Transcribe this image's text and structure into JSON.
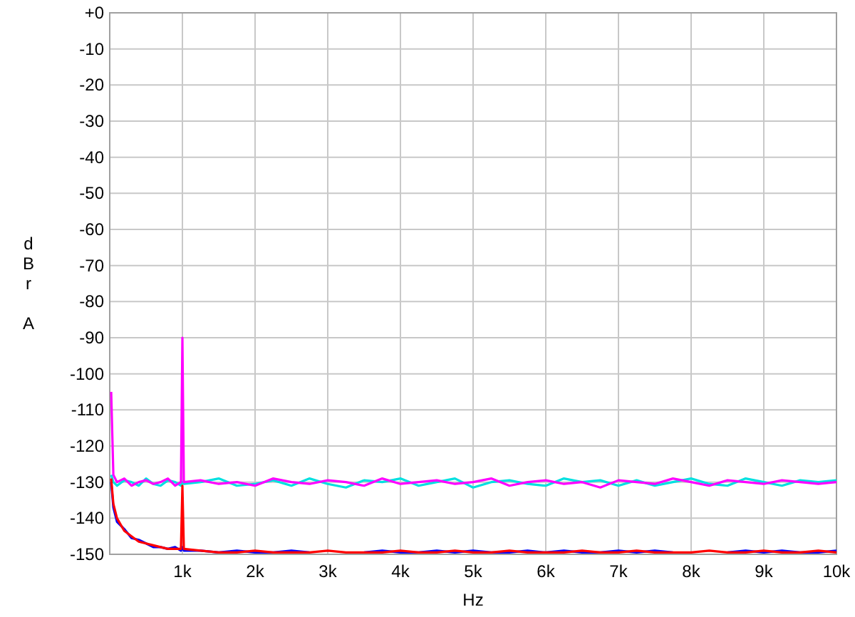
{
  "chart_data": {
    "type": "line",
    "xlabel": "Hz",
    "ylabel": "dBr A",
    "grid": true,
    "marker": "none",
    "line_style": "solid",
    "xlim": [
      0,
      10000
    ],
    "xticks": [
      {
        "value": 1000,
        "label": "1k"
      },
      {
        "value": 2000,
        "label": "2k"
      },
      {
        "value": 3000,
        "label": "3k"
      },
      {
        "value": 4000,
        "label": "4k"
      },
      {
        "value": 5000,
        "label": "5k"
      },
      {
        "value": 6000,
        "label": "6k"
      },
      {
        "value": 7000,
        "label": "7k"
      },
      {
        "value": 8000,
        "label": "8k"
      },
      {
        "value": 9000,
        "label": "9k"
      },
      {
        "value": 10000,
        "label": "10k"
      }
    ],
    "ylim": [
      -150,
      0
    ],
    "yticks": [
      {
        "value": 0,
        "label": "+0"
      },
      -10,
      -20,
      -30,
      -40,
      -50,
      -60,
      -70,
      -80,
      -90,
      -100,
      -110,
      -120,
      -130,
      -140,
      -150
    ],
    "x": [
      20,
      50,
      100,
      200,
      300,
      400,
      500,
      600,
      700,
      800,
      900,
      980,
      1000,
      1020,
      1250,
      1500,
      1750,
      2000,
      2250,
      2500,
      2750,
      3000,
      3250,
      3500,
      3750,
      4000,
      4250,
      4500,
      4750,
      5000,
      5250,
      5500,
      5750,
      6000,
      6250,
      6500,
      6750,
      7000,
      7250,
      7500,
      7750,
      8000,
      8250,
      8500,
      8750,
      9000,
      9250,
      9500,
      9750,
      10000
    ],
    "series": [
      {
        "color": "#00e0e0",
        "values": [
          -128,
          -130,
          -131,
          -129.5,
          -130,
          -131,
          -129,
          -130.5,
          -131,
          -129.5,
          -130,
          -131,
          -130,
          -130.5,
          -130,
          -129,
          -131,
          -130.5,
          -129.5,
          -131,
          -129,
          -130.5,
          -131.5,
          -129.5,
          -130,
          -129,
          -131,
          -130,
          -129,
          -131.5,
          -130,
          -129.5,
          -130.5,
          -131,
          -129,
          -130,
          -129.5,
          -131,
          -129.5,
          -131,
          -130,
          -129,
          -130.5,
          -131,
          -129,
          -130,
          -131,
          -129.5,
          -130,
          -129.5
        ]
      },
      {
        "color": "#ff00ff",
        "values": [
          -105,
          -128,
          -130,
          -129,
          -131,
          -130,
          -129.5,
          -130.5,
          -130,
          -129,
          -131,
          -130,
          -90,
          -130,
          -129.5,
          -130.5,
          -130,
          -131,
          -129,
          -130,
          -130.5,
          -129.5,
          -130,
          -131,
          -129,
          -130.5,
          -130,
          -129.5,
          -130.5,
          -130,
          -129,
          -131,
          -130,
          -129.5,
          -130.5,
          -130,
          -131.5,
          -129.5,
          -130,
          -130.5,
          -129,
          -130,
          -131,
          -129.5,
          -130,
          -130.5,
          -129.5,
          -130,
          -130.5,
          -130
        ]
      },
      {
        "color": "#0000ff",
        "values": [
          -130,
          -137,
          -141,
          -143,
          -145.5,
          -146,
          -147,
          -148,
          -148,
          -148.5,
          -148,
          -149,
          -148,
          -149,
          -149,
          -149.5,
          -149,
          -149.5,
          -149.5,
          -149,
          -149.5,
          null,
          null,
          -149.5,
          -149,
          -149.5,
          -149.5,
          -149,
          -149.5,
          -149,
          -149.5,
          -149.5,
          -149,
          -149.5,
          -149,
          -149.5,
          -149.5,
          -149,
          -149.5,
          -149,
          -149.5,
          null,
          null,
          -149.5,
          -149,
          -149.5,
          -149,
          -149.5,
          -149.5,
          -149
        ]
      },
      {
        "color": "#ff0000",
        "values": [
          -129,
          -136,
          -140,
          -143.5,
          -145,
          -146.5,
          -147,
          -147.5,
          -148,
          -148.5,
          -148.5,
          -148.5,
          -131,
          -148.5,
          -149,
          -149.5,
          -149.5,
          -149,
          -149.5,
          -149.5,
          -149.5,
          -149,
          -149.5,
          -149.5,
          -149.5,
          -149,
          -149.5,
          -149.5,
          -149,
          -149.5,
          -149.5,
          -149,
          -149.5,
          -149.5,
          -149.5,
          -149,
          -149.5,
          -149.5,
          -149,
          -149.5,
          -149.5,
          -149.5,
          -149,
          -149.5,
          -149.5,
          -149,
          -149.5,
          -149.5,
          -149,
          -149.5
        ]
      }
    ]
  }
}
